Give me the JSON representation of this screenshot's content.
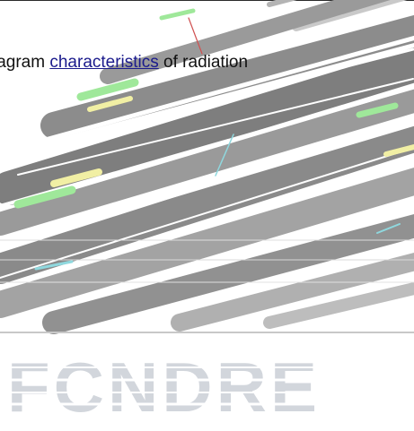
{
  "document": {
    "caption_prefix": "iagram ",
    "caption_link": "characteristics",
    "caption_suffix": " of radiation",
    "banner_text": "FCNDRE"
  },
  "colors": {
    "streak_gray": "#8c8c8c",
    "streak_green": "#9fe89a",
    "streak_yellow": "#f1efa4",
    "streak_cyan": "#8fd8de",
    "banner_gray": "#d2d6dc"
  }
}
